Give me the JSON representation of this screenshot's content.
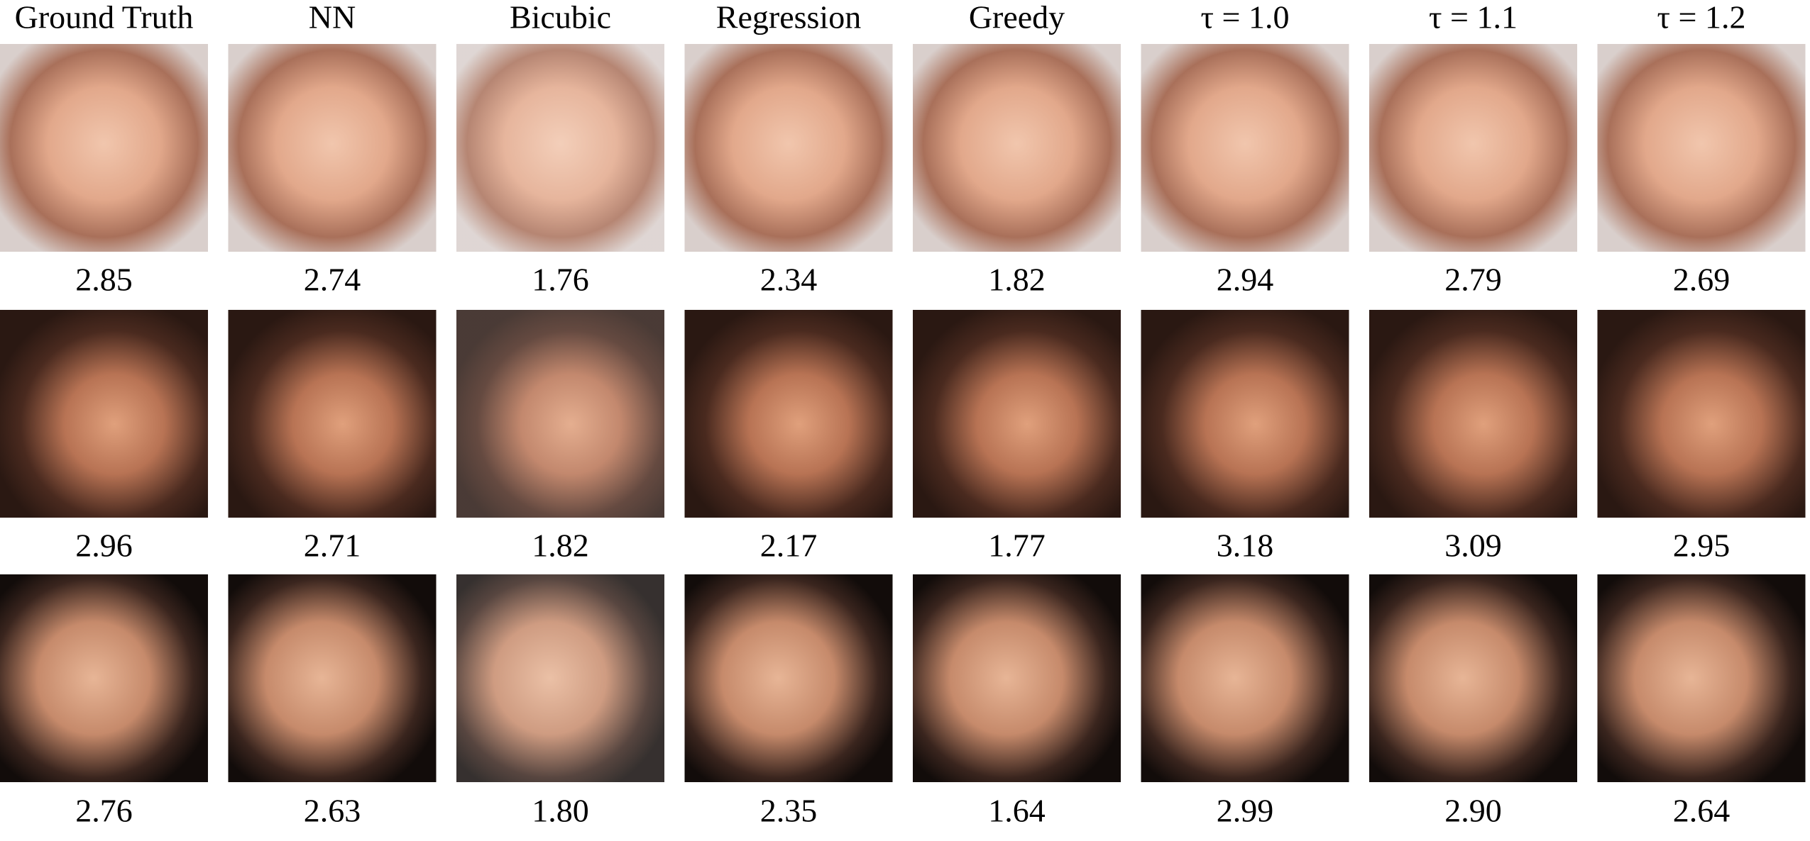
{
  "header": [
    "Ground Truth",
    "NN",
    "Bicubic",
    "Regression",
    "Greedy",
    "τ = 1.0",
    "τ = 1.1",
    "τ = 1.2"
  ],
  "scores": [
    [
      "2.85",
      "2.74",
      "1.76",
      "2.34",
      "1.82",
      "2.94",
      "2.79",
      "2.69"
    ],
    [
      "2.96",
      "2.71",
      "1.82",
      "2.17",
      "1.77",
      "3.18",
      "3.09",
      "2.95"
    ],
    [
      "2.76",
      "2.63",
      "1.80",
      "2.35",
      "1.64",
      "2.99",
      "2.90",
      "2.64"
    ]
  ]
}
